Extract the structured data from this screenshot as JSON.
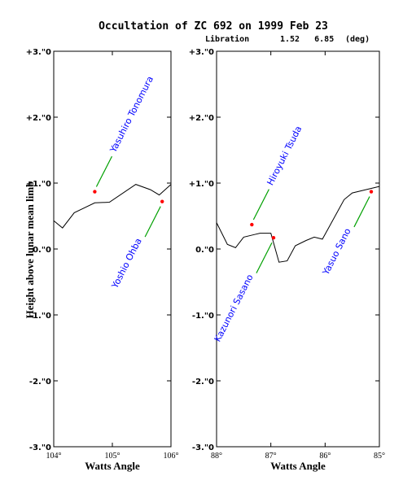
{
  "title": "Occultation of ZC  692 on 1999 Feb 23",
  "libration": {
    "label": "Libration",
    "values": "1.52   6.85",
    "unit": "(deg)"
  },
  "ylabel": "Height above lunar mean limb",
  "colors": {
    "observer_label": "#0000ff",
    "pointer": "#00a000",
    "event_point": "#ff0000",
    "profile": "#000000"
  },
  "chart_data": [
    {
      "type": "line",
      "panel": "left",
      "xlabel": "Watts Angle",
      "xlim": [
        104,
        106
      ],
      "ylim": [
        -3,
        3
      ],
      "xticks": [
        {
          "value": 104,
          "label": "104°"
        },
        {
          "value": 105,
          "label": "105°"
        },
        {
          "value": 106,
          "label": "106°"
        }
      ],
      "yticks": [
        {
          "value": 3,
          "label": "+3.\"0"
        },
        {
          "value": 2,
          "label": "+2.\"0"
        },
        {
          "value": 1,
          "label": "+1.\"0"
        },
        {
          "value": 0,
          "label": "0.\"0"
        },
        {
          "value": -1,
          "label": "-1.\"0"
        },
        {
          "value": -2,
          "label": "-2.\"0"
        },
        {
          "value": -3,
          "label": "-3.\"0"
        }
      ],
      "profile": [
        [
          104.0,
          0.43
        ],
        [
          104.15,
          0.32
        ],
        [
          104.35,
          0.55
        ],
        [
          104.7,
          0.7
        ],
        [
          104.95,
          0.71
        ],
        [
          105.4,
          0.98
        ],
        [
          105.65,
          0.9
        ],
        [
          105.8,
          0.82
        ],
        [
          106.0,
          0.98
        ]
      ],
      "observers": [
        {
          "name": "Yasuhiro Tonomura",
          "point": [
            104.7,
            0.87
          ],
          "label_pos": "above"
        },
        {
          "name": "Yoshio Ohba",
          "point": [
            105.85,
            0.72
          ],
          "label_pos": "below"
        }
      ]
    },
    {
      "type": "line",
      "panel": "right",
      "xlabel": "Watts Angle",
      "xlim": [
        88,
        85
      ],
      "ylim": [
        -3,
        3
      ],
      "xticks": [
        {
          "value": 88,
          "label": "88°"
        },
        {
          "value": 87,
          "label": "87°"
        },
        {
          "value": 86,
          "label": "86°"
        },
        {
          "value": 85,
          "label": "85°"
        }
      ],
      "yticks": [
        {
          "value": 3,
          "label": "+3.\"0"
        },
        {
          "value": 2,
          "label": "+2.\"0"
        },
        {
          "value": 1,
          "label": "+1.\"0"
        },
        {
          "value": 0,
          "label": "0.\"0"
        },
        {
          "value": -1,
          "label": "-1.\"0"
        },
        {
          "value": -2,
          "label": "-2.\"0"
        },
        {
          "value": -3,
          "label": "-3.\"0"
        }
      ],
      "profile": [
        [
          88.0,
          0.4
        ],
        [
          87.8,
          0.07
        ],
        [
          87.65,
          0.02
        ],
        [
          87.5,
          0.18
        ],
        [
          87.3,
          0.22
        ],
        [
          87.2,
          0.24
        ],
        [
          87.0,
          0.24
        ],
        [
          86.85,
          -0.2
        ],
        [
          86.7,
          -0.18
        ],
        [
          86.55,
          0.05
        ],
        [
          86.35,
          0.13
        ],
        [
          86.2,
          0.18
        ],
        [
          86.05,
          0.15
        ],
        [
          85.95,
          0.3
        ],
        [
          85.65,
          0.75
        ],
        [
          85.5,
          0.85
        ],
        [
          85.25,
          0.9
        ],
        [
          85.0,
          0.95
        ]
      ],
      "observers": [
        {
          "name": "Hiroyuki Tsuda",
          "point": [
            87.35,
            0.37
          ],
          "label_pos": "above"
        },
        {
          "name": "Kazunori Sasano",
          "point": [
            86.95,
            0.17
          ],
          "label_pos": "below"
        },
        {
          "name": "Yasuo Sano",
          "point": [
            85.15,
            0.87
          ],
          "label_pos": "below"
        }
      ]
    }
  ]
}
